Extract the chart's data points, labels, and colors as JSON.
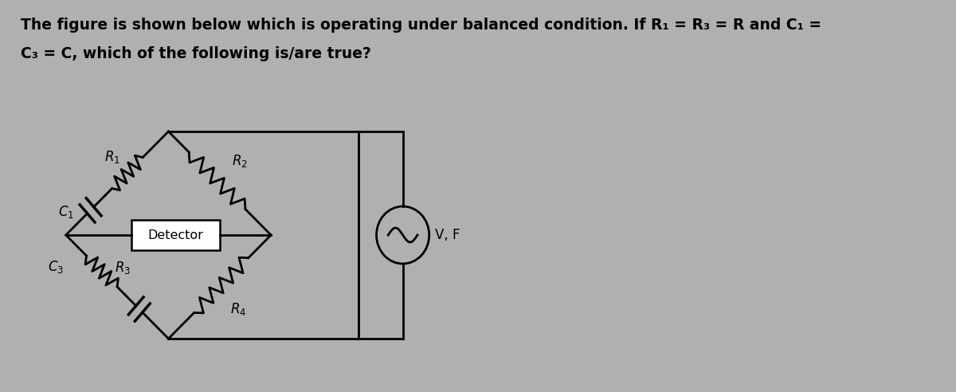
{
  "title_line1": "The figure is shown below which is operating under balanced condition. If R₁ = R₃ = R and C₁ =",
  "title_line2": "C₃ = C, which of the following is/are true?",
  "bg_color_left": "#aaaaaa",
  "bg_color": "#b8b8b8",
  "text_color": "#000000",
  "circuit_color": "#000000",
  "lw": 2.0
}
